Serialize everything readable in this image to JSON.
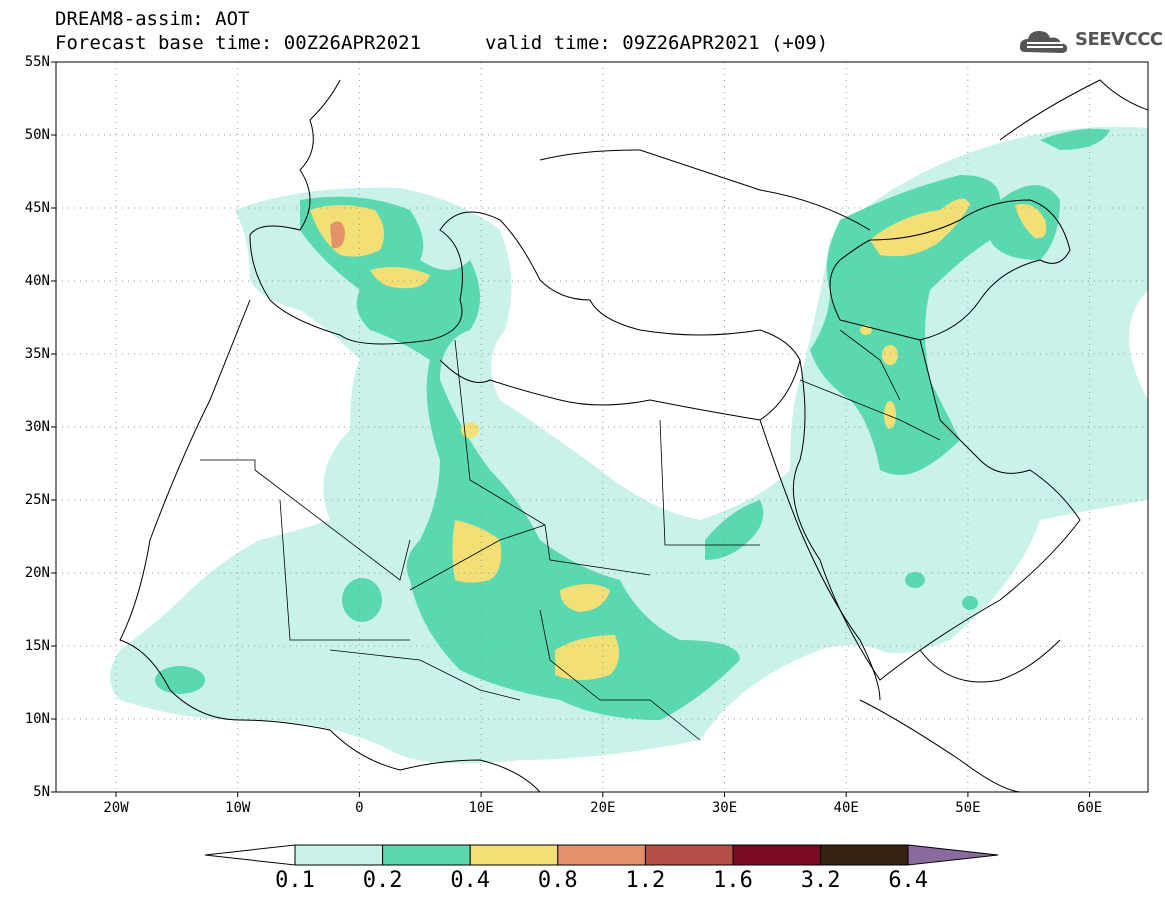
{
  "header": {
    "title_line1": "DREAM8-assim: AOT",
    "title_line2": "Forecast base time: 00Z26APR2021",
    "valid_time": "valid time: 09Z26APR2021 (+09)",
    "logo_text": "SEEVCCC"
  },
  "map": {
    "lat_labels": [
      "55N",
      "50N",
      "45N",
      "40N",
      "35N",
      "30N",
      "25N",
      "20N",
      "15N",
      "10N",
      "5N"
    ],
    "lon_labels": [
      "20W",
      "10W",
      "0",
      "10E",
      "20E",
      "30E",
      "40E",
      "50E",
      "60E"
    ],
    "shading_colors": {
      "c1": "#c8f2ea",
      "c2": "#5ad9b0",
      "c3": "#f2e077",
      "c4": "#e3926a",
      "c5": "#b54f45",
      "c6": "#7b0a25",
      "c7": "#3a2212",
      "c8": "#8a6a9f"
    }
  },
  "colorbar": {
    "labels": [
      "0.1",
      "0.2",
      "0.4",
      "0.8",
      "1.2",
      "1.6",
      "3.2",
      "6.4"
    ],
    "colors": [
      "#c8f2ea",
      "#5ad9b0",
      "#f2e077",
      "#e3926a",
      "#b54f45",
      "#7b0a25",
      "#3a2212"
    ],
    "low_color": "#ffffff",
    "high_color": "#8a6a9f"
  }
}
